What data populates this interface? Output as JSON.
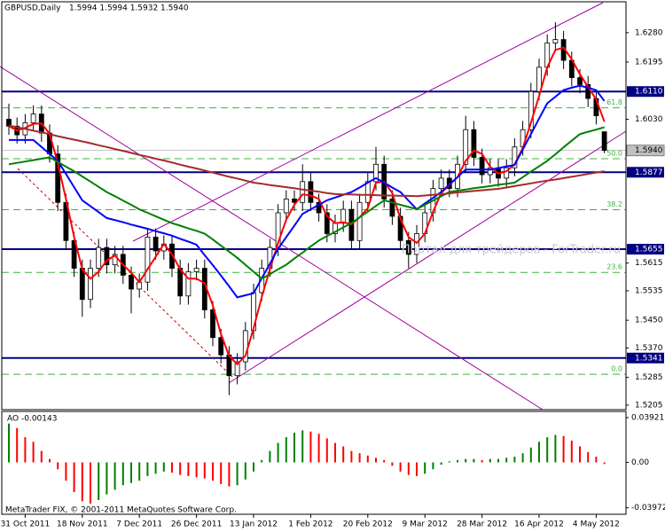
{
  "chart_data": {
    "type": "candlestick",
    "header": {
      "symbol": "GBPUSD,Daily",
      "ohlc": "1.5994 1.5994 1.5932 1.5940"
    },
    "categories": [
      null,
      null,
      "31 Oct 2011",
      null,
      null,
      null,
      null,
      null,
      null,
      "18 Nov 2011",
      null,
      null,
      null,
      null,
      null,
      null,
      "7 Dec 2011",
      null,
      null,
      null,
      null,
      null,
      null,
      "26 Dec 2011",
      null,
      null,
      null,
      null,
      null,
      null,
      "13 Jan 2012",
      null,
      null,
      null,
      null,
      null,
      null,
      "1 Feb 2012",
      null,
      null,
      null,
      null,
      null,
      null,
      "20 Feb 2012",
      null,
      null,
      null,
      null,
      null,
      null,
      "9 Mar 2012",
      null,
      null,
      null,
      null,
      null,
      null,
      "28 Mar 2012",
      null,
      null,
      null,
      null,
      null,
      null,
      "16 Apr 2012",
      null,
      null,
      null,
      null,
      null,
      null,
      "4 May 2012",
      null
    ],
    "open": [
      1.603,
      1.601,
      1.5985,
      1.602,
      1.6045,
      1.599,
      1.593,
      1.579,
      1.568,
      1.56,
      1.551,
      1.56,
      1.566,
      1.561,
      1.564,
      1.558,
      1.554,
      1.556,
      1.569,
      1.565,
      1.567,
      1.56,
      1.552,
      1.559,
      1.56,
      1.548,
      1.54,
      1.535,
      1.529,
      1.533,
      1.542,
      1.553,
      1.56,
      1.566,
      1.576,
      1.58,
      1.579,
      1.585,
      1.579,
      1.576,
      1.57,
      1.573,
      1.577,
      1.568,
      1.579,
      1.585,
      1.59,
      1.58,
      1.575,
      1.568,
      1.564,
      1.57,
      1.576,
      1.583,
      1.586,
      1.583,
      1.59,
      1.6,
      1.592,
      1.587,
      1.589,
      1.586,
      1.589,
      1.595,
      1.6,
      1.611,
      1.618,
      1.625,
      1.626,
      1.62,
      1.615,
      1.613,
      1.609,
      1.5994
    ],
    "high": [
      1.6075,
      1.6035,
      1.6045,
      1.607,
      1.607,
      1.6015,
      1.5955,
      1.5815,
      1.5705,
      1.5625,
      1.5625,
      1.5685,
      1.5685,
      1.5665,
      1.5665,
      1.5605,
      1.5585,
      1.5715,
      1.5715,
      1.5695,
      1.5695,
      1.5625,
      1.5615,
      1.5625,
      1.5625,
      1.5505,
      1.5425,
      1.5375,
      1.5355,
      1.5445,
      1.5555,
      1.5625,
      1.5685,
      1.5785,
      1.5825,
      1.5825,
      1.59,
      1.5875,
      1.5815,
      1.5785,
      1.5755,
      1.5795,
      1.5795,
      1.5815,
      1.5875,
      1.595,
      1.5925,
      1.5825,
      1.5775,
      1.5705,
      1.5725,
      1.5785,
      1.5855,
      1.5885,
      1.5885,
      1.5925,
      1.604,
      1.6025,
      1.5945,
      1.5915,
      1.5915,
      1.5915,
      1.5975,
      1.6025,
      1.6135,
      1.6205,
      1.6275,
      1.631,
      1.6285,
      1.6225,
      1.6175,
      1.6155,
      1.6115,
      1.5994
    ],
    "low": [
      1.5985,
      1.596,
      1.596,
      1.5995,
      1.5965,
      1.5905,
      1.5765,
      1.5655,
      1.5575,
      1.546,
      1.5485,
      1.5575,
      1.5585,
      1.5585,
      1.5555,
      1.547,
      1.5515,
      1.5535,
      1.5625,
      1.5625,
      1.5575,
      1.5495,
      1.5495,
      1.5565,
      1.5455,
      1.5375,
      1.5325,
      1.5234,
      1.5265,
      1.5305,
      1.5395,
      1.5505,
      1.5575,
      1.5635,
      1.5735,
      1.5765,
      1.5765,
      1.5765,
      1.5735,
      1.5675,
      1.5675,
      1.5705,
      1.5655,
      1.5655,
      1.5765,
      1.5825,
      1.5775,
      1.5725,
      1.5655,
      1.56,
      1.5615,
      1.5675,
      1.5735,
      1.5805,
      1.5805,
      1.5805,
      1.5875,
      1.5895,
      1.5845,
      1.5845,
      1.5835,
      1.5835,
      1.5865,
      1.5925,
      1.5975,
      1.6085,
      1.6155,
      1.6225,
      1.6175,
      1.6125,
      1.6105,
      1.6065,
      1.6015,
      1.5932
    ],
    "close": [
      1.601,
      1.5985,
      1.602,
      1.6045,
      1.599,
      1.593,
      1.579,
      1.568,
      1.56,
      1.551,
      1.56,
      1.566,
      1.561,
      1.564,
      1.558,
      1.554,
      1.556,
      1.569,
      1.565,
      1.567,
      1.56,
      1.552,
      1.559,
      1.56,
      1.548,
      1.54,
      1.535,
      1.529,
      1.533,
      1.542,
      1.553,
      1.56,
      1.566,
      1.576,
      1.58,
      1.579,
      1.585,
      1.579,
      1.576,
      1.57,
      1.573,
      1.577,
      1.568,
      1.579,
      1.585,
      1.59,
      1.58,
      1.575,
      1.568,
      1.564,
      1.57,
      1.576,
      1.583,
      1.586,
      1.583,
      1.59,
      1.6,
      1.592,
      1.587,
      1.589,
      1.586,
      1.589,
      1.595,
      1.6,
      1.611,
      1.618,
      1.625,
      1.626,
      1.62,
      1.615,
      1.613,
      1.609,
      1.604,
      1.594
    ],
    "up_color": "#ffffff",
    "down_color": "#000000",
    "ylim": [
      1.5192,
      1.6369
    ],
    "yticks": [
      {
        "value": 1.628,
        "label": "1.6280"
      },
      {
        "value": 1.6195,
        "label": "1.6195"
      },
      {
        "value": 1.603,
        "label": "1.6030"
      },
      {
        "value": 1.5615,
        "label": "1.5615"
      },
      {
        "value": 1.5535,
        "label": "1.5535"
      },
      {
        "value": 1.545,
        "label": "1.5450"
      },
      {
        "value": 1.537,
        "label": "1.5370"
      },
      {
        "value": 1.5285,
        "label": "1.5285"
      },
      {
        "value": 1.5205,
        "label": "1.5205"
      }
    ],
    "levels": [
      {
        "value": 1.611,
        "label": "1.6110"
      },
      {
        "value": 1.5877,
        "label": "1.5877"
      },
      {
        "value": 1.5655,
        "label": "1.5655"
      },
      {
        "value": 1.5341,
        "label": "1.5341"
      }
    ],
    "level_color": "#000080",
    "price_label": {
      "value": 1.594,
      "label": "1.5940"
    },
    "fib_levels": [
      {
        "value": 1.6063,
        "label": "61.8"
      },
      {
        "value": 1.5916,
        "label": "50.0"
      },
      {
        "value": 1.5769,
        "label": "38.2"
      },
      {
        "value": 1.5588,
        "label": "23.6"
      },
      {
        "value": 1.5294,
        "label": "0.0"
      }
    ],
    "fib_color": "#3cb43c",
    "ma": [
      {
        "color": "#ff0000",
        "values": [
          1.601,
          1.5998,
          1.6005,
          1.6017,
          1.6018,
          1.5988,
          1.5903,
          1.58,
          1.569,
          1.5597,
          1.557,
          1.559,
          1.5623,
          1.5637,
          1.561,
          1.5587,
          1.556,
          1.5597,
          1.5633,
          1.567,
          1.564,
          1.5597,
          1.557,
          1.557,
          1.5557,
          1.5493,
          1.541,
          1.5347,
          1.5323,
          1.5347,
          1.5427,
          1.5517,
          1.5597,
          1.5673,
          1.574,
          1.5783,
          1.5813,
          1.581,
          1.58,
          1.575,
          1.573,
          1.5733,
          1.5727,
          1.5747,
          1.5773,
          1.5847,
          1.585,
          1.5817,
          1.5743,
          1.569,
          1.5673,
          1.57,
          1.5763,
          1.5817,
          1.584,
          1.5863,
          1.591,
          1.594,
          1.593,
          1.5893,
          1.5873,
          1.588,
          1.59,
          1.5947,
          1.602,
          1.6097,
          1.618,
          1.623,
          1.6237,
          1.6203,
          1.616,
          1.6123,
          1.6087,
          1.6023
        ]
      },
      {
        "color": "#0000ff",
        "values": [
          1.597,
          1.597,
          1.597,
          1.597,
          1.595,
          1.593,
          1.591,
          1.5872,
          1.5834,
          1.5796,
          1.5779,
          1.5762,
          1.5745,
          1.5739,
          1.5733,
          1.5726,
          1.572,
          1.5714,
          1.5707,
          1.5701,
          1.5694,
          1.5685,
          1.5677,
          1.5668,
          1.5638,
          1.5609,
          1.5579,
          1.5548,
          1.5516,
          1.5522,
          1.5528,
          1.5571,
          1.5613,
          1.5656,
          1.569,
          1.5723,
          1.5757,
          1.577,
          1.5783,
          1.5796,
          1.5804,
          1.5812,
          1.582,
          1.5833,
          1.5847,
          1.586,
          1.5847,
          1.5833,
          1.582,
          1.5795,
          1.577,
          1.5787,
          1.5803,
          1.582,
          1.5842,
          1.5863,
          1.5885,
          1.5885,
          1.5885,
          1.5885,
          1.5889,
          1.5894,
          1.5898,
          1.5943,
          1.5987,
          1.6032,
          1.6076,
          1.6095,
          1.6114,
          1.6121,
          1.6127,
          1.6121,
          1.6114,
          1.6083
        ]
      },
      {
        "color": "#008000",
        "values": [
          1.59,
          1.5904,
          1.5908,
          1.5912,
          1.5916,
          1.592,
          1.5907,
          1.5893,
          1.588,
          1.5865,
          1.585,
          1.5835,
          1.582,
          1.5808,
          1.5795,
          1.5783,
          1.577,
          1.576,
          1.575,
          1.574,
          1.573,
          1.5723,
          1.5715,
          1.5708,
          1.57,
          1.5683,
          1.5665,
          1.5648,
          1.563,
          1.561,
          1.559,
          1.557,
          1.5583,
          1.5597,
          1.561,
          1.5628,
          1.5645,
          1.5663,
          1.568,
          1.5693,
          1.5705,
          1.5718,
          1.573,
          1.5747,
          1.5763,
          1.578,
          1.5796,
          1.579,
          1.5783,
          1.5777,
          1.577,
          1.5783,
          1.5795,
          1.5808,
          1.582,
          1.5824,
          1.5827,
          1.5831,
          1.5834,
          1.5837,
          1.5841,
          1.5844,
          1.5847,
          1.5863,
          1.5879,
          1.5894,
          1.591,
          1.5929,
          1.5949,
          1.5968,
          1.5987,
          1.5994,
          1.6,
          1.6007
        ]
      },
      {
        "color": "#a52a2a",
        "values": [
          1.6012,
          1.6007,
          1.6002,
          1.5997,
          1.5992,
          1.5987,
          1.5981,
          1.5976,
          1.5971,
          1.5966,
          1.5961,
          1.5955,
          1.595,
          1.5944,
          1.5939,
          1.5933,
          1.5927,
          1.5922,
          1.5916,
          1.5911,
          1.5905,
          1.5899,
          1.5893,
          1.5888,
          1.5882,
          1.5876,
          1.587,
          1.5864,
          1.5859,
          1.5853,
          1.5847,
          1.5844,
          1.584,
          1.5837,
          1.5834,
          1.5831,
          1.5827,
          1.5824,
          1.5821,
          1.5817,
          1.5814,
          1.5813,
          1.5813,
          1.5812,
          1.5812,
          1.5811,
          1.581,
          1.581,
          1.5809,
          1.5809,
          1.5808,
          1.581,
          1.5812,
          1.5814,
          1.5816,
          1.5819,
          1.5821,
          1.5823,
          1.5825,
          1.5827,
          1.5829,
          1.5833,
          1.5837,
          1.5841,
          1.5845,
          1.5849,
          1.5853,
          1.5856,
          1.586,
          1.5864,
          1.5868,
          1.5872,
          1.5876,
          1.588
        ]
      }
    ],
    "indicator": {
      "type": "bar",
      "name": "AO",
      "values": [
        0.034,
        0.03,
        0.022,
        0.018,
        0.01,
        0.003,
        -0.006,
        -0.016,
        -0.026,
        -0.034,
        -0.036,
        -0.033,
        -0.028,
        -0.024,
        -0.02,
        -0.018,
        -0.016,
        -0.012,
        -0.01,
        -0.008,
        -0.009,
        -0.011,
        -0.012,
        -0.013,
        -0.014,
        -0.016,
        -0.019,
        -0.021,
        -0.02,
        -0.015,
        -0.008,
        0.002,
        0.01,
        0.017,
        0.022,
        0.026,
        0.028,
        0.027,
        0.025,
        0.021,
        0.017,
        0.014,
        0.01,
        0.008,
        0.006,
        0.004,
        0.002,
        -0.003,
        -0.008,
        -0.011,
        -0.012,
        -0.01,
        -0.006,
        -0.002,
        0.001,
        0.002,
        0.003,
        0.003,
        0.002,
        0.003,
        0.003,
        0.004,
        0.005,
        0.008,
        0.013,
        0.018,
        0.022,
        0.024,
        0.023,
        0.019,
        0.014,
        0.009,
        0.005,
        -0.00143
      ],
      "up_color": "#008000",
      "down_color": "#ff0000",
      "ylim": [
        -0.0454,
        0.0446
      ],
      "yticks": [
        0.03921,
        {
          "value": 0,
          "label": "0.00"
        },
        -0.03972
      ]
    },
    "watermark": "Портал для трейдеров - ForTrader.ru",
    "footer": "MetaTrader FIX, © 2001-2011 MetaQuotes Software Corp."
  }
}
